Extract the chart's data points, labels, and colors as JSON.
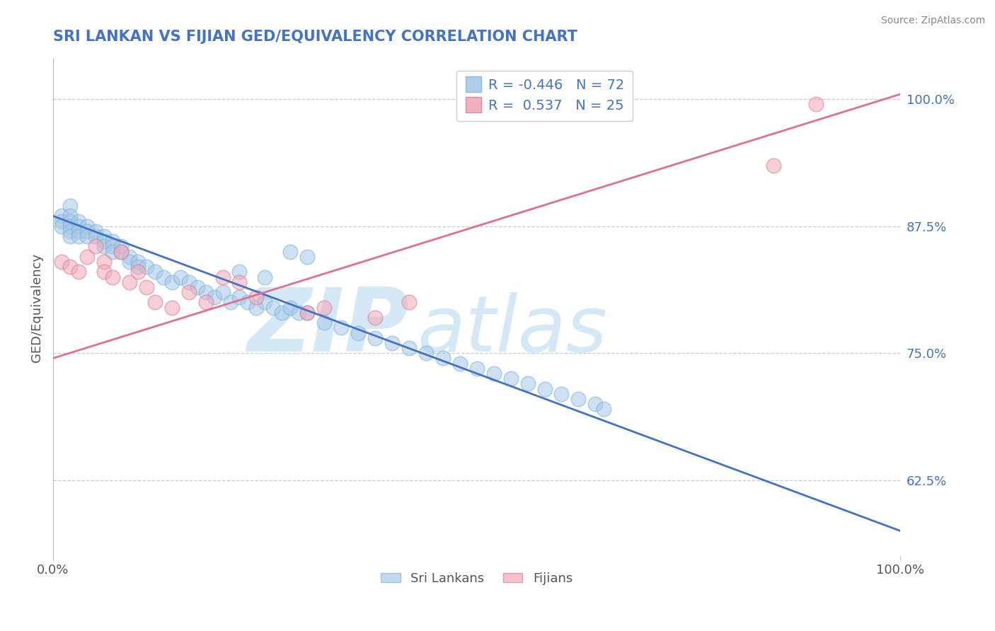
{
  "title": "SRI LANKAN VS FIJIAN GED/EQUIVALENCY CORRELATION CHART",
  "source_text": "Source: ZipAtlas.com",
  "ylabel": "GED/Equivalency",
  "ylabel_right_ticks": [
    62.5,
    75.0,
    87.5,
    100.0
  ],
  "ylabel_right_labels": [
    "62.5%",
    "75.0%",
    "87.5%",
    "100.0%"
  ],
  "xlim": [
    0.0,
    100.0
  ],
  "ylim": [
    55.0,
    104.0
  ],
  "blue_R": -0.446,
  "blue_N": 72,
  "pink_R": 0.537,
  "pink_N": 25,
  "blue_color": "#A8C8E8",
  "pink_color": "#F0A8B8",
  "blue_line_color": "#4472C4",
  "pink_line_color": "#E07090",
  "title_color": "#4472C4",
  "watermark_zip": "ZIP",
  "watermark_atlas": "atlas",
  "watermark_color": "#D5E8F5",
  "legend_label_blue": "Sri Lankans",
  "legend_label_pink": "Fijians",
  "blue_x": [
    1,
    1,
    1,
    2,
    2,
    2,
    2,
    2,
    2,
    3,
    3,
    3,
    3,
    4,
    4,
    4,
    5,
    5,
    6,
    6,
    6,
    7,
    7,
    7,
    8,
    8,
    9,
    9,
    10,
    10,
    11,
    12,
    13,
    14,
    15,
    16,
    17,
    18,
    19,
    20,
    21,
    22,
    23,
    24,
    25,
    26,
    27,
    28,
    29,
    30,
    32,
    34,
    36,
    38,
    40,
    42,
    44,
    46,
    48,
    50,
    52,
    54,
    56,
    58,
    60,
    62,
    64,
    65,
    28,
    30,
    22,
    25
  ],
  "blue_y": [
    88.5,
    88.0,
    87.5,
    89.5,
    88.5,
    88.0,
    87.5,
    87.0,
    86.5,
    88.0,
    87.5,
    87.0,
    86.5,
    87.5,
    87.0,
    86.5,
    87.0,
    86.5,
    86.5,
    86.0,
    85.5,
    86.0,
    85.5,
    85.0,
    85.5,
    85.0,
    84.5,
    84.0,
    84.0,
    83.5,
    83.5,
    83.0,
    82.5,
    82.0,
    82.5,
    82.0,
    81.5,
    81.0,
    80.5,
    81.0,
    80.0,
    80.5,
    80.0,
    79.5,
    80.0,
    79.5,
    79.0,
    79.5,
    79.0,
    79.0,
    78.0,
    77.5,
    77.0,
    76.5,
    76.0,
    75.5,
    75.0,
    74.5,
    74.0,
    73.5,
    73.0,
    72.5,
    72.0,
    71.5,
    71.0,
    70.5,
    70.0,
    69.5,
    85.0,
    84.5,
    83.0,
    82.5
  ],
  "pink_x": [
    1,
    2,
    3,
    4,
    5,
    6,
    6,
    7,
    8,
    9,
    10,
    11,
    12,
    14,
    16,
    18,
    20,
    22,
    24,
    30,
    32,
    38,
    42,
    85,
    90
  ],
  "pink_y": [
    84.0,
    83.5,
    83.0,
    84.5,
    85.5,
    84.0,
    83.0,
    82.5,
    85.0,
    82.0,
    83.0,
    81.5,
    80.0,
    79.5,
    81.0,
    80.0,
    82.5,
    82.0,
    80.5,
    79.0,
    79.5,
    78.5,
    80.0,
    93.5,
    99.5
  ],
  "blue_trend_x0": 0,
  "blue_trend_x1": 100,
  "blue_trend_y0": 88.5,
  "blue_trend_y1": 57.5,
  "pink_trend_x0": 0,
  "pink_trend_x1": 100,
  "pink_trend_y0": 74.5,
  "pink_trend_y1": 100.5,
  "grid_color": "#CCCCCC",
  "grid_linestyle": "--",
  "background_color": "#FFFFFF",
  "tick_color": "#4472C4"
}
